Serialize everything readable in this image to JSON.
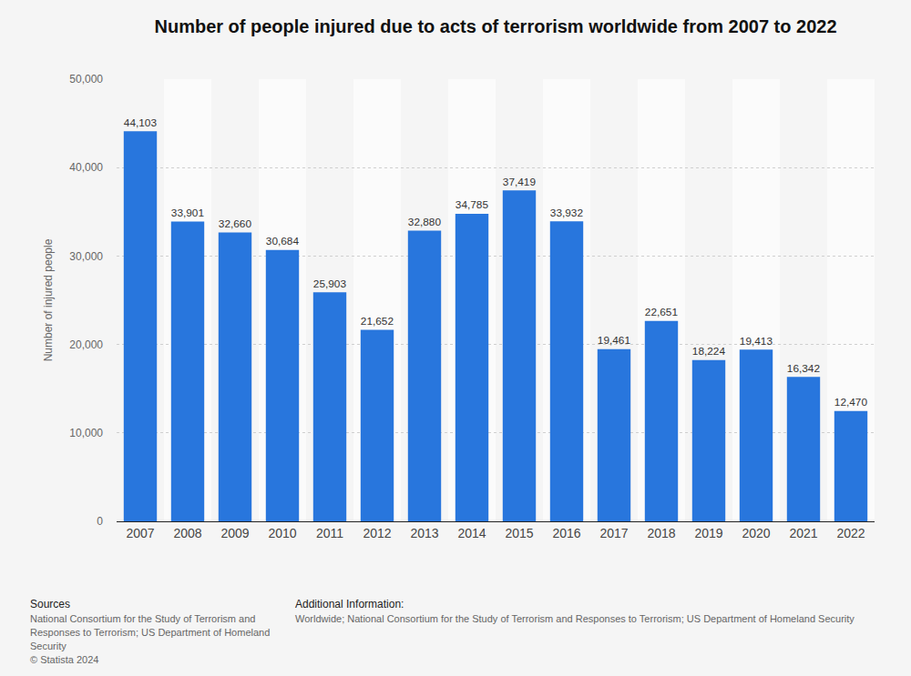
{
  "chart_data": {
    "type": "bar",
    "title": "Number of people injured due to acts of terrorism worldwide from 2007 to 2022",
    "y_label": "Number of injured people",
    "categories": [
      "2007",
      "2008",
      "2009",
      "2010",
      "2011",
      "2012",
      "2013",
      "2014",
      "2015",
      "2016",
      "2017",
      "2018",
      "2019",
      "2020",
      "2021",
      "2022"
    ],
    "values": [
      44103,
      33901,
      32660,
      30684,
      25903,
      21652,
      32880,
      34785,
      37419,
      33932,
      19461,
      22651,
      18224,
      19413,
      16342,
      12470
    ],
    "value_labels": [
      "44,103",
      "33,901",
      "32,660",
      "30,684",
      "25,903",
      "21,652",
      "32,880",
      "34,785",
      "37,419",
      "33,932",
      "19,461",
      "22,651",
      "18,224",
      "19,413",
      "16,342",
      "12,470"
    ],
    "color": "#2876dd",
    "ylim": [
      0,
      50000
    ],
    "yticks": [
      0,
      {
        "value": 10000,
        "label": "10,000"
      },
      {
        "value": 20000,
        "label": "20,000"
      },
      {
        "value": 30000,
        "label": "30,000"
      },
      {
        "value": 40000,
        "label": "40,000"
      },
      {
        "value": 50000,
        "label": "50,000"
      }
    ],
    "grid": true,
    "data_labels": true
  },
  "footer": {
    "sources_title": "Sources",
    "sources": "National Consortium for the Study of Terrorism and Responses to Terrorism; US Department of Homeland Security",
    "copyright": "© Statista 2024",
    "additional_title": "Additional Information:",
    "additional": "Worldwide; National Consortium for the Study of Terrorism and Responses to Terrorism; US Department of Homeland Security"
  }
}
